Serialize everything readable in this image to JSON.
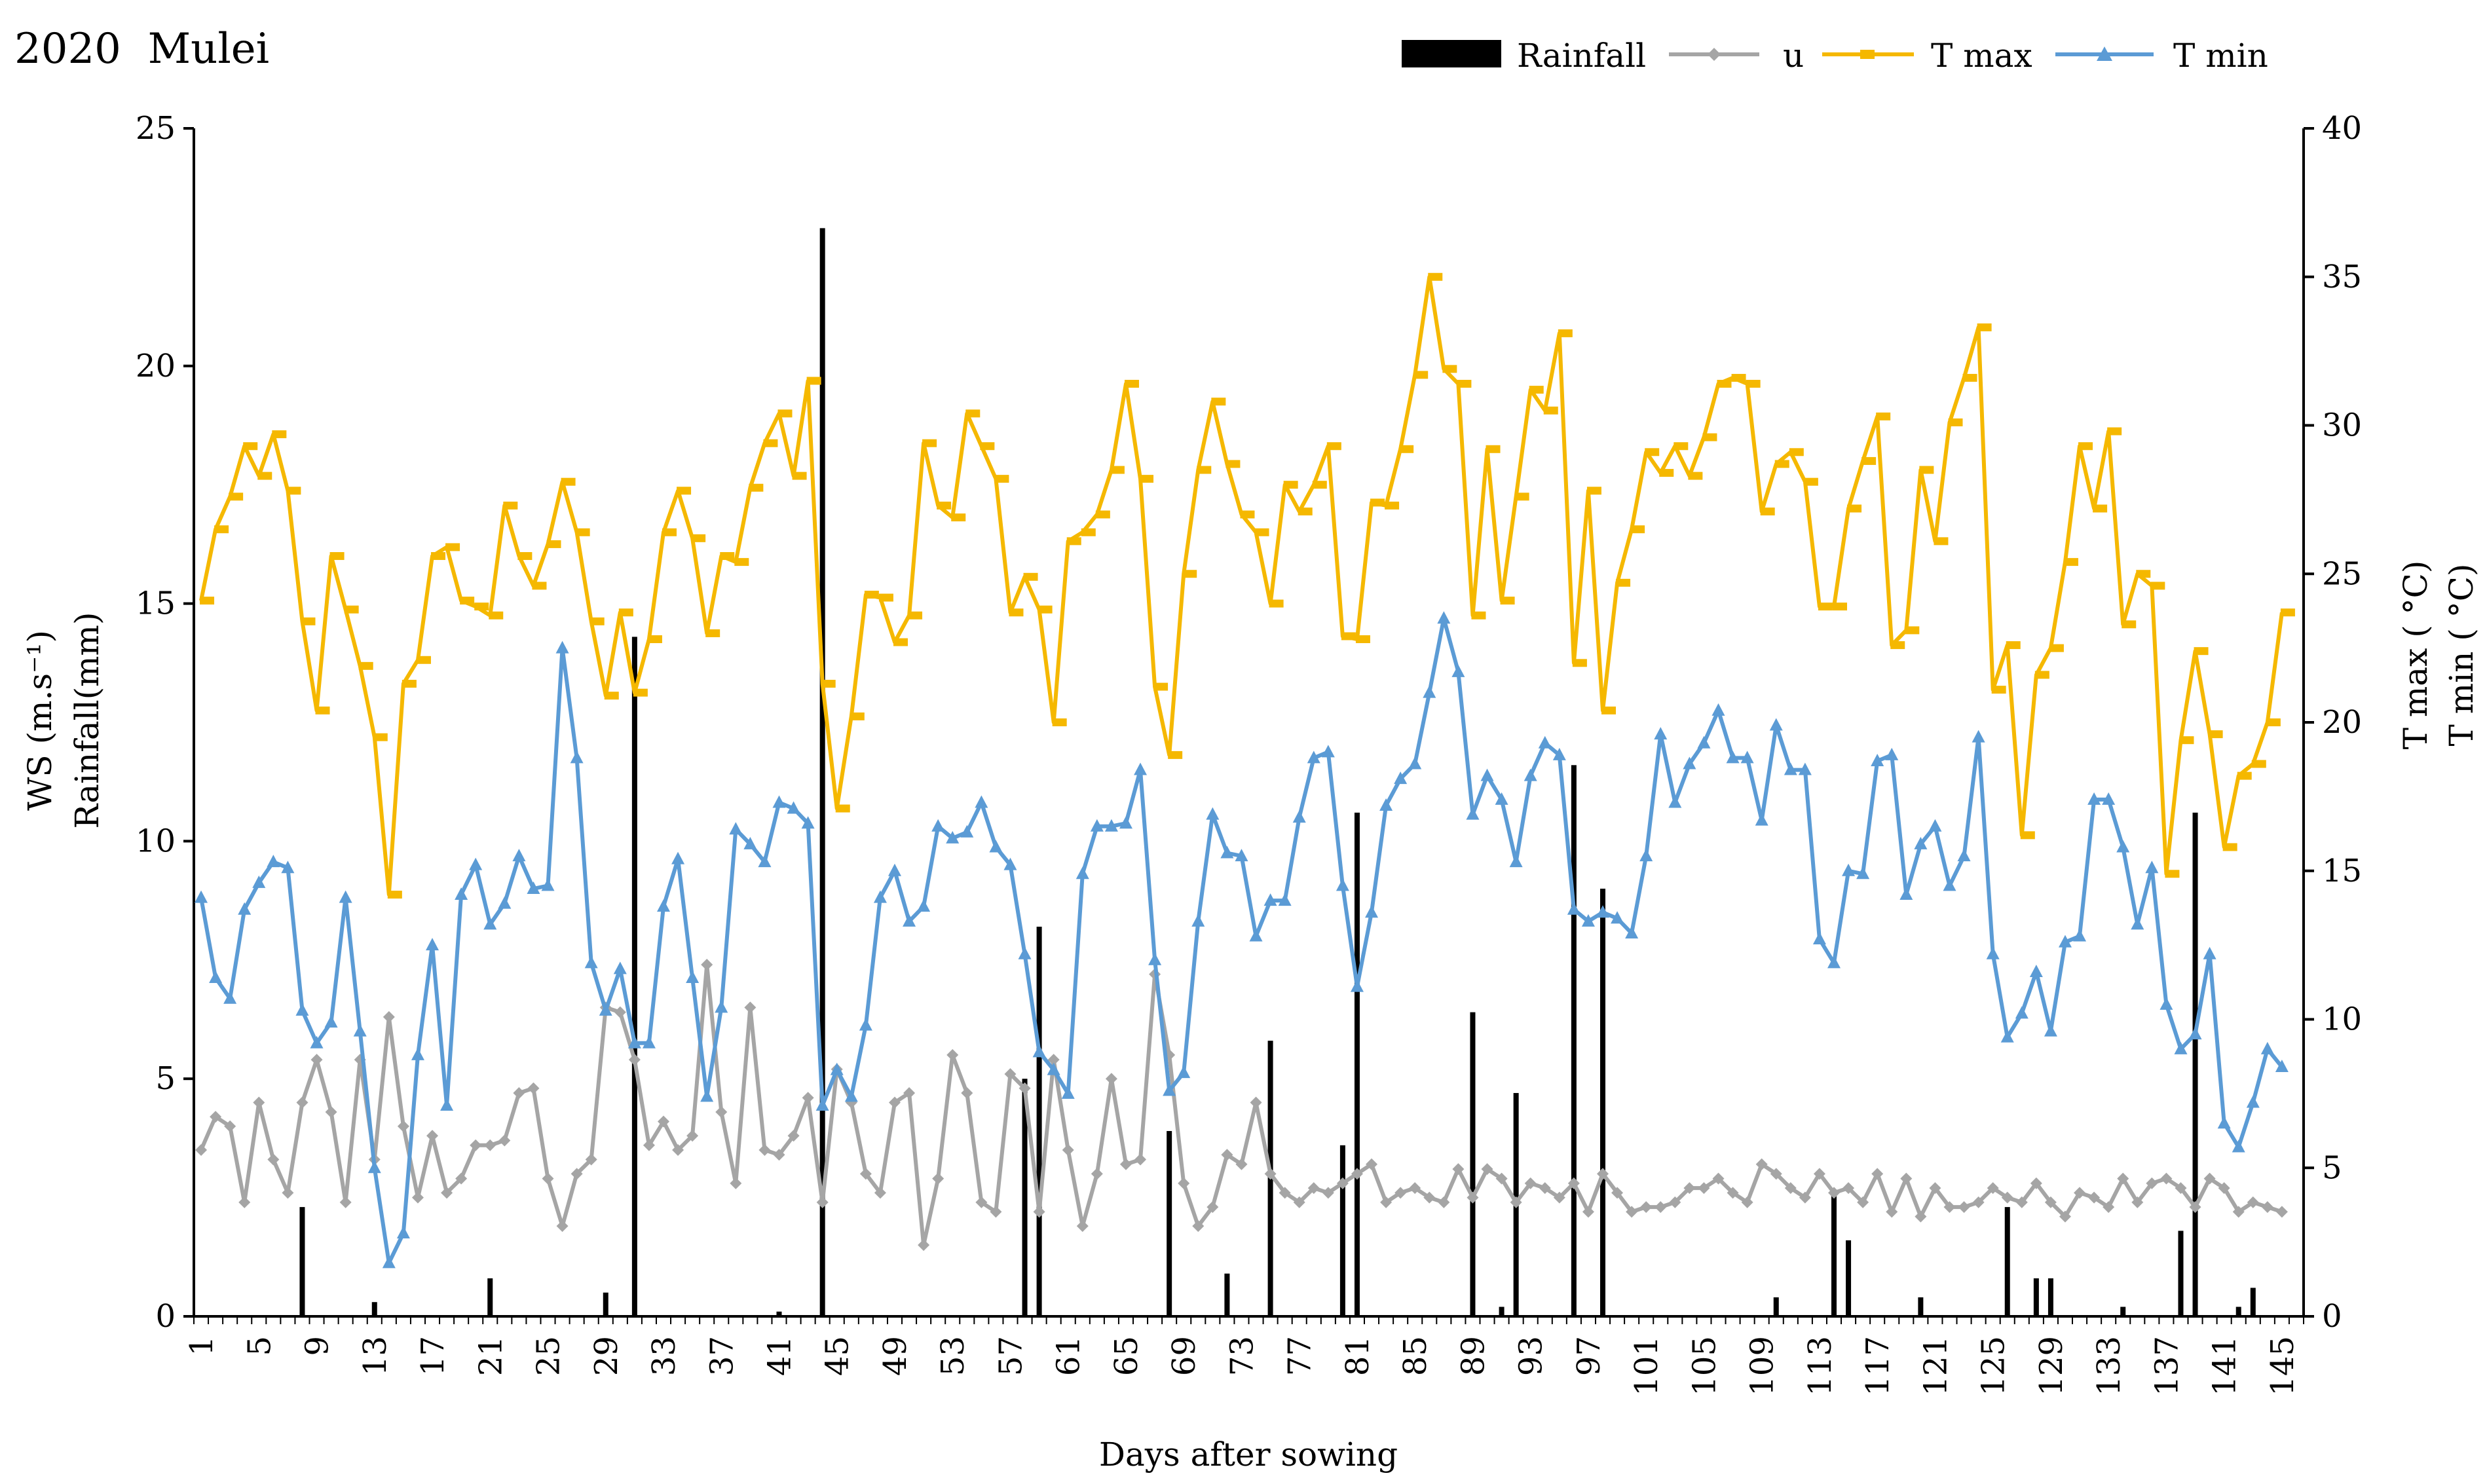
{
  "chart_data": {
    "type": "bar+line",
    "title": "2020  Mulei",
    "xlabel": "Days after sowing",
    "ylabel_left": [
      "WS (m.s⁻¹)",
      "Rainfall(mm)"
    ],
    "ylabel_right": [
      "T max ( °C)",
      "T min ( °C)"
    ],
    "ylim_left": [
      0,
      25
    ],
    "ylim_right": [
      0,
      40
    ],
    "xlim": [
      1,
      145
    ],
    "x_ticks": [
      1,
      5,
      9,
      13,
      17,
      21,
      25,
      29,
      33,
      37,
      41,
      45,
      49,
      53,
      57,
      61,
      65,
      69,
      73,
      77,
      81,
      85,
      89,
      93,
      97,
      101,
      105,
      109,
      113,
      117,
      121,
      125,
      129,
      133,
      137,
      141,
      145
    ],
    "y_ticks_left": [
      0,
      5,
      10,
      15,
      20,
      25
    ],
    "y_ticks_right": [
      0,
      5,
      10,
      15,
      20,
      25,
      30,
      35,
      40
    ],
    "legend": [
      "Rainfall",
      "u",
      "T max",
      "T min"
    ],
    "colors": {
      "rainfall": "#000000",
      "u": "#a5a5a5",
      "tmax": "#f5b800",
      "tmin": "#5b9bd5"
    },
    "series": [
      {
        "name": "Rainfall",
        "axis": "left",
        "kind": "bar",
        "values": [
          0,
          0,
          0,
          0,
          0,
          0,
          0,
          2.3,
          0,
          0,
          0,
          0,
          0.3,
          0,
          0,
          0,
          0,
          0,
          0,
          0,
          0.8,
          0,
          0,
          0,
          0,
          0,
          0,
          0,
          0.5,
          0,
          14.3,
          0,
          0,
          0,
          0,
          0,
          0,
          0,
          0,
          0,
          0.1,
          0,
          0,
          22.9,
          0,
          0,
          0,
          0,
          0,
          0,
          0,
          0,
          0,
          0,
          0,
          0,
          0,
          5.0,
          8.2,
          0,
          0,
          0,
          0,
          0,
          0,
          0,
          0,
          3.9,
          0,
          0,
          0,
          0.9,
          0,
          0,
          5.8,
          0,
          0,
          0,
          0,
          3.6,
          10.6,
          0,
          0,
          0,
          0,
          0,
          0,
          0,
          6.4,
          0,
          0.2,
          4.7,
          0,
          0,
          0,
          11.6,
          0,
          9.0,
          0,
          0,
          0,
          0,
          0,
          0,
          0,
          0,
          0,
          0,
          0,
          0.4,
          0,
          0,
          0,
          2.6,
          1.6,
          0,
          0,
          0,
          0,
          0.4,
          0,
          0,
          0,
          0,
          0,
          2.3,
          0,
          0.8,
          0.8,
          0,
          0,
          0,
          0,
          0.2,
          0,
          0,
          0,
          1.8,
          10.6,
          0,
          0,
          0.2,
          0.6,
          0,
          0,
          0,
          0,
          0
        ]
      },
      {
        "name": "u",
        "axis": "left",
        "kind": "line",
        "marker": "diamond",
        "values": [
          3.5,
          4.2,
          4.0,
          2.4,
          4.5,
          3.3,
          2.6,
          4.5,
          5.4,
          4.3,
          2.4,
          5.4,
          3.3,
          6.3,
          4.0,
          2.5,
          3.8,
          2.6,
          2.9,
          3.6,
          3.6,
          3.7,
          4.7,
          4.8,
          2.9,
          1.9,
          3.0,
          3.3,
          6.5,
          6.4,
          5.4,
          3.6,
          4.1,
          3.5,
          3.8,
          7.4,
          4.3,
          2.8,
          6.5,
          3.5,
          3.4,
          3.8,
          4.6,
          2.4,
          5.2,
          4.5,
          3.0,
          2.6,
          4.5,
          4.7,
          1.5,
          2.9,
          5.5,
          4.7,
          2.4,
          2.2,
          5.1,
          4.8,
          2.2,
          5.4,
          3.5,
          1.9,
          3.0,
          5.0,
          3.2,
          3.3,
          7.2,
          5.5,
          2.8,
          1.9,
          2.3,
          3.4,
          3.2,
          4.5,
          3.0,
          2.6,
          2.4,
          2.7,
          2.6,
          2.8,
          3.0,
          3.2,
          2.4,
          2.6,
          2.7,
          2.5,
          2.4,
          3.1,
          2.5,
          3.1,
          2.9,
          2.4,
          2.8,
          2.7,
          2.5,
          2.8,
          2.2,
          3.0,
          2.6,
          2.2,
          2.3,
          2.3,
          2.4,
          2.7,
          2.7,
          2.9,
          2.6,
          2.4,
          3.2,
          3.0,
          2.7,
          2.5,
          3.0,
          2.6,
          2.7,
          2.4,
          3.0,
          2.2,
          2.9,
          2.1,
          2.7,
          2.3,
          2.3,
          2.4,
          2.7,
          2.5,
          2.4,
          2.8,
          2.4,
          2.1,
          2.6,
          2.5,
          2.3,
          2.9,
          2.4,
          2.8,
          2.9,
          2.7,
          2.3,
          2.9,
          2.7,
          2.2,
          2.4,
          2.3,
          2.2
        ]
      },
      {
        "name": "T max",
        "axis": "right",
        "kind": "line",
        "marker": "dash",
        "values": [
          24.1,
          26.5,
          27.6,
          29.3,
          28.3,
          29.7,
          27.8,
          23.4,
          20.4,
          25.6,
          23.8,
          21.9,
          19.5,
          14.2,
          21.3,
          22.1,
          25.6,
          25.9,
          24.1,
          23.9,
          23.6,
          27.3,
          25.6,
          24.6,
          26.0,
          28.1,
          26.4,
          23.4,
          20.9,
          23.7,
          21.0,
          22.8,
          26.4,
          27.8,
          26.2,
          23.0,
          25.6,
          25.4,
          27.9,
          29.4,
          30.4,
          28.3,
          31.5,
          21.3,
          17.1,
          20.2,
          24.3,
          24.2,
          22.7,
          23.6,
          29.4,
          27.3,
          26.9,
          30.4,
          29.3,
          28.2,
          23.7,
          24.9,
          23.8,
          20.0,
          26.1,
          26.4,
          27.0,
          28.5,
          31.4,
          28.2,
          21.2,
          18.9,
          25.0,
          28.5,
          30.8,
          28.7,
          27.0,
          26.4,
          24.0,
          28.0,
          27.1,
          28.0,
          29.3,
          22.9,
          22.8,
          27.4,
          27.3,
          29.2,
          31.7,
          35.0,
          31.9,
          31.4,
          23.6,
          29.2,
          24.1,
          27.6,
          31.2,
          30.5,
          33.1,
          22.0,
          27.8,
          20.4,
          24.7,
          26.5,
          29.1,
          28.4,
          29.3,
          28.3,
          29.6,
          31.4,
          31.6,
          31.4,
          27.1,
          28.7,
          29.1,
          28.1,
          23.9,
          23.9,
          27.2,
          28.8,
          30.3,
          22.6,
          23.1,
          28.5,
          26.1,
          30.1,
          31.6,
          33.3,
          21.1,
          22.6,
          16.2,
          21.6,
          22.5,
          25.4,
          29.3,
          27.2,
          29.8,
          23.3,
          25.0,
          24.6,
          14.9,
          19.4,
          22.4,
          19.6,
          15.8,
          18.2,
          18.6,
          20.0,
          23.7
        ]
      },
      {
        "name": "T min",
        "axis": "right",
        "kind": "line",
        "marker": "triangle",
        "values": [
          14.1,
          11.4,
          10.7,
          13.7,
          14.6,
          15.3,
          15.1,
          10.3,
          9.2,
          9.9,
          14.1,
          9.6,
          5.0,
          1.8,
          2.8,
          8.8,
          12.5,
          7.1,
          14.2,
          15.2,
          13.2,
          13.9,
          15.5,
          14.4,
          14.5,
          22.5,
          18.8,
          11.9,
          10.3,
          11.7,
          9.2,
          9.2,
          13.8,
          15.4,
          11.4,
          7.4,
          10.4,
          16.4,
          15.9,
          15.3,
          17.3,
          17.1,
          16.6,
          7.1,
          8.3,
          7.4,
          9.8,
          14.1,
          15.0,
          13.3,
          13.8,
          16.5,
          16.1,
          16.3,
          17.3,
          15.8,
          15.2,
          12.2,
          8.9,
          8.3,
          7.5,
          14.9,
          16.5,
          16.5,
          16.6,
          18.4,
          12.0,
          7.6,
          8.2,
          13.3,
          16.9,
          15.6,
          15.5,
          12.8,
          14.0,
          14.0,
          16.8,
          18.8,
          19.0,
          14.5,
          11.1,
          13.6,
          17.2,
          18.1,
          18.6,
          21.0,
          23.5,
          21.7,
          16.9,
          18.2,
          17.4,
          15.3,
          18.2,
          19.3,
          18.9,
          13.7,
          13.3,
          13.6,
          13.4,
          12.9,
          15.5,
          19.6,
          17.3,
          18.6,
          19.3,
          20.4,
          18.8,
          18.8,
          16.7,
          19.9,
          18.4,
          18.4,
          12.7,
          11.9,
          15.0,
          14.9,
          18.7,
          18.9,
          14.2,
          15.9,
          16.5,
          14.5,
          15.5,
          19.5,
          12.2,
          9.4,
          10.2,
          11.6,
          9.6,
          12.6,
          12.8,
          17.4,
          17.4,
          15.8,
          13.2,
          15.1,
          10.5,
          9.0,
          9.5,
          12.2,
          6.5,
          5.7,
          7.2,
          9.0,
          8.4
        ]
      }
    ]
  }
}
